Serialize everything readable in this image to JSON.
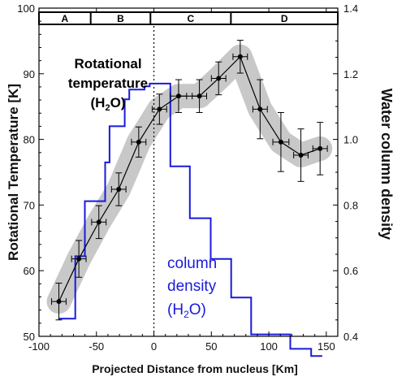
{
  "chart_data": {
    "type": "line",
    "xlabel": "Projected Distance from nucleus [Km]",
    "ylabel_left": "Rotational Temperature [K]",
    "ylabel_right": "Water column density",
    "xlim": [
      -100,
      160
    ],
    "ylim_left": [
      50,
      100
    ],
    "ylim_right": [
      0.4,
      1.4
    ],
    "x_ticks": [
      -100,
      -50,
      0,
      50,
      100,
      150
    ],
    "y_ticks_left": [
      50,
      60,
      70,
      80,
      90,
      100
    ],
    "y_ticks_right": [
      0.4,
      0.6,
      0.8,
      1.0,
      1.2,
      1.4
    ],
    "y_tick_labels_right": [
      "0.4",
      "0.6",
      "0.8",
      "1.0",
      "1.2",
      "1.4"
    ],
    "grid": false,
    "nucleus_line_x": 0,
    "regions": [
      {
        "label": "A",
        "x_start": -100,
        "x_end": -55
      },
      {
        "label": "B",
        "x_start": -55,
        "x_end": -3
      },
      {
        "label": "C",
        "x_start": -3,
        "x_end": 67
      },
      {
        "label": "D",
        "x_start": 67,
        "x_end": 160
      }
    ],
    "annotations": {
      "temperature": [
        "Rotational",
        "temperature",
        "(H",
        "2",
        "O)"
      ],
      "density": [
        "column",
        "density",
        "(H",
        "2",
        "O)"
      ]
    },
    "series": [
      {
        "axis": "left",
        "color": "#000000",
        "band_color": "#c8c8c8",
        "x": [
          -82.7,
          -65.3,
          -47.9,
          -30.6,
          -13.2,
          4.8,
          21.5,
          39.6,
          56.3,
          75.1,
          92.4,
          110.5,
          127.9,
          144.6
        ],
        "y": [
          55.3,
          61.8,
          67.4,
          72.4,
          79.6,
          84.6,
          86.6,
          86.6,
          89.3,
          92.6,
          84.6,
          79.6,
          77.6,
          78.6
        ],
        "xerr": [
          6.3,
          6.3,
          6.3,
          6.3,
          6.3,
          6.3,
          7.0,
          6.3,
          6.3,
          6.3,
          6.3,
          7.0,
          6.3,
          6.3
        ],
        "yerr": [
          2.8,
          2.8,
          2.5,
          2.5,
          2.3,
          2.3,
          2.5,
          2.5,
          2.5,
          2.5,
          4.5,
          4.5,
          4.0,
          4.0
        ]
      },
      {
        "axis": "right",
        "color": "#1a1adc",
        "step_x": [
          -82.7,
          -68.4,
          -60.1,
          -42.4,
          -38.6,
          -25.4,
          -21.4,
          -8.2,
          -3.6,
          14.3,
          31.3,
          49.4,
          67.2,
          84.6,
          102.0,
          118.7,
          136.8,
          146.5
        ],
        "step_y": [
          0.454,
          0.644,
          0.812,
          0.93,
          1.04,
          1.122,
          1.152,
          1.162,
          1.17,
          0.918,
          0.76,
          0.636,
          0.518,
          0.406,
          0.406,
          0.362,
          0.34
        ]
      }
    ]
  }
}
